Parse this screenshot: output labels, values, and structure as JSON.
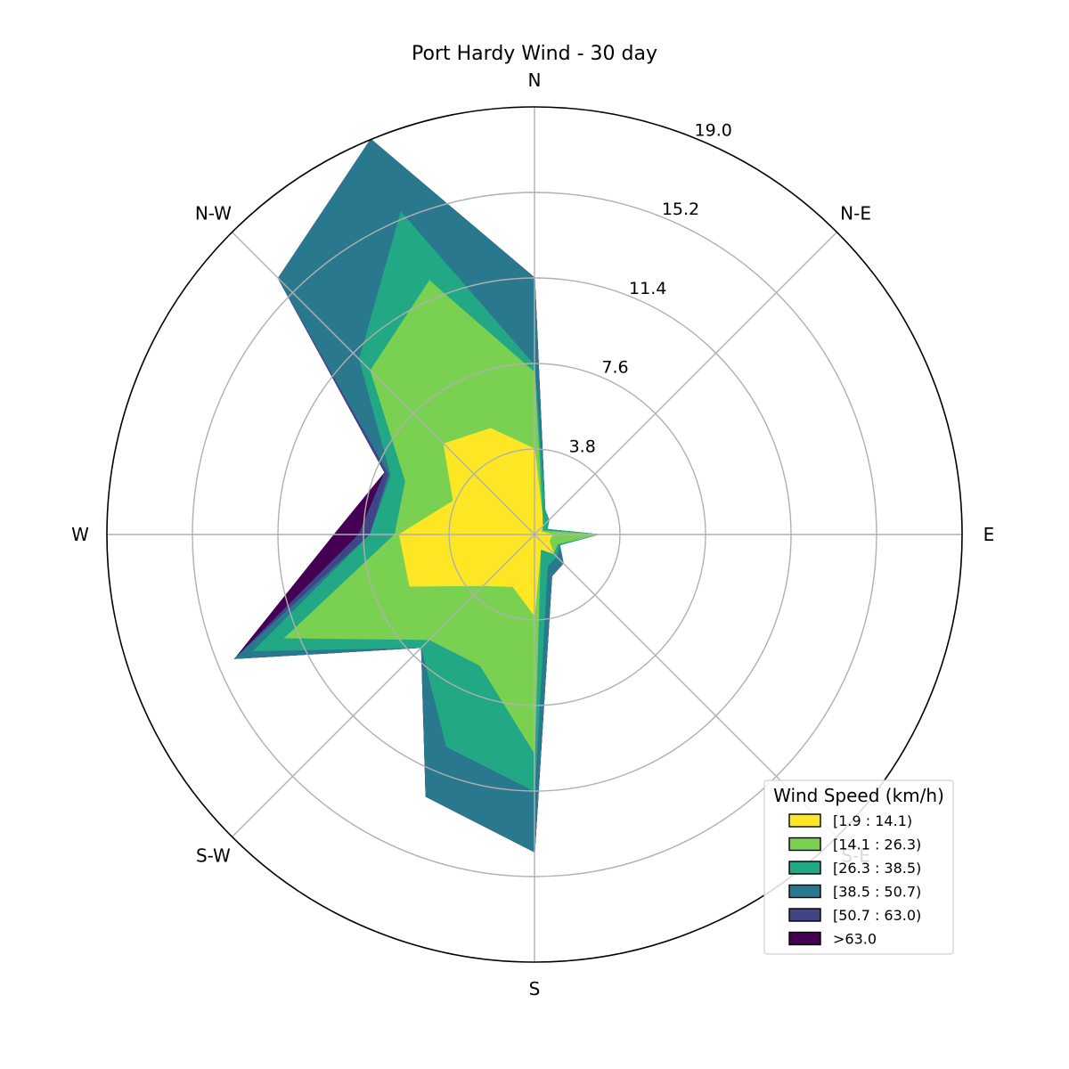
{
  "chart_data": {
    "type": "area",
    "title": "Port Hardy Wind - 30 day",
    "directions": [
      "N",
      "N-E",
      "E",
      "S-E",
      "S",
      "S-W",
      "W",
      "N-W"
    ],
    "radial_ticks": [
      "3.8",
      "7.6",
      "11.4",
      "15.2",
      "19.0"
    ],
    "rmax": 19.0,
    "legend_title": "Wind Speed (km/h)",
    "legend_placement": "bottom-right",
    "bearings": [
      0,
      22.5,
      45,
      67.5,
      90,
      112.5,
      135,
      157.5,
      180,
      202.5,
      225,
      247.5,
      270,
      292.5,
      315,
      337.5
    ],
    "series": [
      {
        "name": "[1.9 : 14.1)",
        "color": "#fde725",
        "cumulative": [
          3.8,
          0.9,
          0.5,
          0.3,
          0.8,
          0.7,
          1.2,
          0.7,
          3.6,
          2.5,
          3.2,
          6.0,
          6.0,
          3.9,
          5.7,
          5.1
        ]
      },
      {
        "name": "[14.1 : 26.3)",
        "color": "#7ad151",
        "cumulative": [
          7.2,
          0.9,
          0.5,
          0.4,
          2.8,
          1.1,
          1.2,
          0.7,
          9.7,
          6.3,
          6.6,
          12.0,
          6.2,
          6.2,
          10.3,
          12.2
        ]
      },
      {
        "name": "[26.3 : 38.5)",
        "color": "#22a884",
        "cumulative": [
          7.5,
          1.2,
          0.9,
          0.6,
          2.8,
          1.2,
          1.4,
          1.5,
          11.4,
          10.2,
          7.1,
          13.5,
          7.3,
          6.9,
          11.0,
          15.5
        ]
      },
      {
        "name": "[38.5 : 50.7)",
        "color": "#2a788e",
        "cumulative": [
          11.4,
          1.2,
          0.9,
          0.6,
          2.8,
          1.2,
          1.8,
          2.0,
          14.1,
          12.6,
          7.1,
          14.4,
          7.3,
          7.0,
          16.1,
          19.0
        ]
      },
      {
        "name": "[50.7 : 63.0)",
        "color": "#414487",
        "cumulative": [
          11.4,
          1.2,
          0.9,
          0.6,
          2.8,
          1.2,
          1.8,
          2.0,
          14.1,
          12.6,
          7.1,
          14.4,
          7.8,
          7.2,
          16.1,
          19.0
        ]
      },
      {
        "name": ">63.0",
        "color": "#440154",
        "cumulative": [
          11.4,
          1.2,
          0.9,
          0.6,
          2.8,
          1.2,
          1.8,
          2.0,
          14.1,
          12.6,
          7.1,
          14.4,
          8.9,
          7.2,
          16.1,
          19.0
        ]
      }
    ]
  }
}
